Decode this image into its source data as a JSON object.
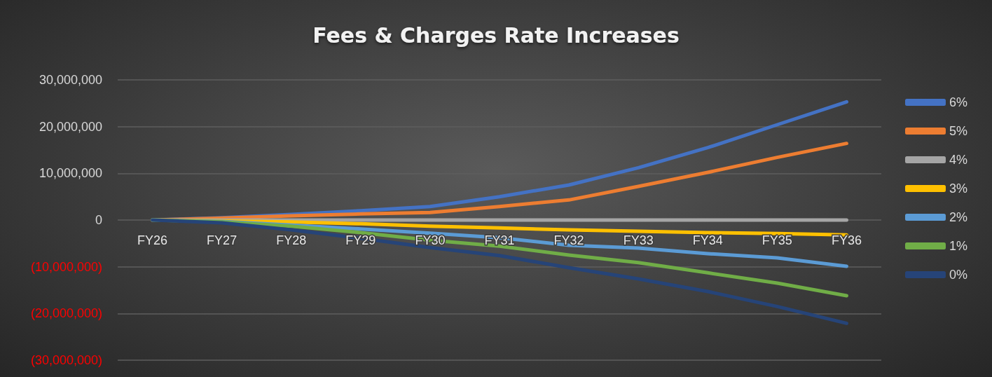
{
  "chart_data": {
    "type": "line",
    "title": "Fees & Charges Rate Increases",
    "categories": [
      "FY26",
      "FY27",
      "FY28",
      "FY29",
      "FY30",
      "FY31",
      "FY32",
      "FY33",
      "FY34",
      "FY35",
      "FY36"
    ],
    "series": [
      {
        "name": "6%",
        "color": "#4472c4",
        "values": [
          0,
          500000,
          1200000,
          2000000,
          2900000,
          5000000,
          7500000,
          11200000,
          15500000,
          20400000,
          25300000
        ]
      },
      {
        "name": "5%",
        "color": "#ed7d31",
        "values": [
          0,
          400000,
          900000,
          1300000,
          1600000,
          2900000,
          4300000,
          7200000,
          10200000,
          13400000,
          16400000
        ]
      },
      {
        "name": "4%",
        "color": "#a5a5a5",
        "values": [
          0,
          0,
          0,
          0,
          0,
          0,
          0,
          0,
          0,
          0,
          0
        ]
      },
      {
        "name": "3%",
        "color": "#ffc000",
        "values": [
          0,
          -200000,
          -400000,
          -800000,
          -1300000,
          -1700000,
          -2100000,
          -2400000,
          -2700000,
          -2900000,
          -3200000
        ]
      },
      {
        "name": "2%",
        "color": "#5b9bd5",
        "values": [
          0,
          -300000,
          -1100000,
          -1900000,
          -2800000,
          -3800000,
          -5400000,
          -6000000,
          -7200000,
          -8100000,
          -9900000
        ]
      },
      {
        "name": "1%",
        "color": "#70ad47",
        "values": [
          0,
          -400000,
          -1300000,
          -2700000,
          -4300000,
          -5600000,
          -7500000,
          -9100000,
          -11300000,
          -13500000,
          -16200000
        ]
      },
      {
        "name": "0%",
        "color": "#264478",
        "values": [
          0,
          -600000,
          -2100000,
          -3900000,
          -5900000,
          -7600000,
          -10200000,
          -12600000,
          -15300000,
          -18500000,
          -22100000
        ]
      }
    ],
    "ylim": [
      -30000000,
      30000000
    ],
    "yticks": [
      {
        "value": -30000000,
        "label": "(30,000,000)"
      },
      {
        "value": -20000000,
        "label": "(20,000,000)"
      },
      {
        "value": -10000000,
        "label": "(10,000,000)"
      },
      {
        "value": 0,
        "label": "0"
      },
      {
        "value": 10000000,
        "label": "10,000,000"
      },
      {
        "value": 20000000,
        "label": "20,000,000"
      },
      {
        "value": 30000000,
        "label": "30,000,000"
      }
    ],
    "grid": "y",
    "legend": "right",
    "marker": "none",
    "line_style": "solid"
  }
}
